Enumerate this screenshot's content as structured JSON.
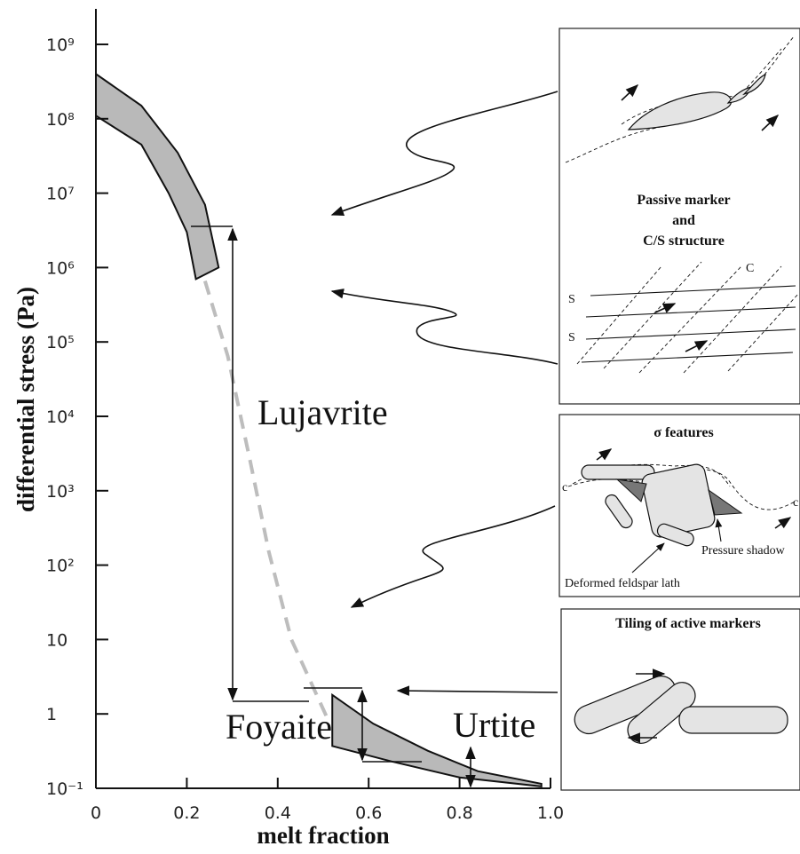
{
  "chart_data": {
    "type": "area",
    "x_label": "melt fraction",
    "y_label": "differential stress (Pa)",
    "ylog": true,
    "xlim": [
      0,
      1
    ],
    "ylim": [
      0.1,
      3000000000
    ],
    "xticks": [
      0,
      0.2,
      0.4,
      0.6,
      0.8,
      {
        "value": 1,
        "label": "1.0"
      }
    ],
    "yticks": [
      {
        "value": 0.1,
        "label": "10⁻¹"
      },
      1,
      10,
      {
        "value": 100,
        "label": "10²"
      },
      {
        "value": 1000,
        "label": "10³"
      },
      {
        "value": 10000,
        "label": "10⁴"
      },
      {
        "value": 100000,
        "label": "10⁵"
      },
      {
        "value": 1000000,
        "label": "10⁶"
      },
      {
        "value": 10000000,
        "label": "10⁷"
      },
      {
        "value": 100000000,
        "label": "10⁸"
      },
      {
        "value": 1000000000,
        "label": "10⁹"
      }
    ],
    "bands": [
      {
        "color": "#b9b9b9",
        "x_upper": [
          0,
          0.1,
          0.18,
          0.24,
          0.27
        ],
        "upper": [
          400000000,
          150000000,
          35000000,
          7000000,
          1000000
        ],
        "x_lower": [
          0,
          0.1,
          0.16,
          0.2,
          0.22
        ],
        "lower": [
          110000000,
          45000000,
          10000000,
          3000000,
          700000
        ]
      },
      {
        "color": "#b9b9b9",
        "x_upper": [
          0.52,
          0.61,
          0.73,
          0.84,
          0.98
        ],
        "upper": [
          1.8,
          0.74,
          0.32,
          0.17,
          0.115
        ],
        "x_lower": [
          0.52,
          0.65,
          0.8,
          0.98
        ],
        "lower": [
          0.37,
          0.23,
          0.14,
          0.106
        ]
      }
    ],
    "lines": [
      {
        "color": "#bdbdbd",
        "dashed": true,
        "x": [
          0.24,
          0.29,
          0.34,
          0.38,
          0.43,
          0.51
        ],
        "values": [
          660000,
          65000,
          2400,
          155,
          10,
          0.85
        ]
      }
    ],
    "annotations": [
      "Lujavrite",
      "Foyaite",
      "Urtite"
    ]
  },
  "insets": [
    {
      "title": [
        "Passive marker",
        "and",
        "C/S structure"
      ],
      "labels": [
        "C",
        "S",
        "S"
      ]
    },
    {
      "title": "σ features",
      "labels": [
        "c",
        "c",
        "Pressure shadow",
        "Deformed feldspar lath"
      ]
    },
    {
      "title": "Tiling of active markers"
    }
  ]
}
